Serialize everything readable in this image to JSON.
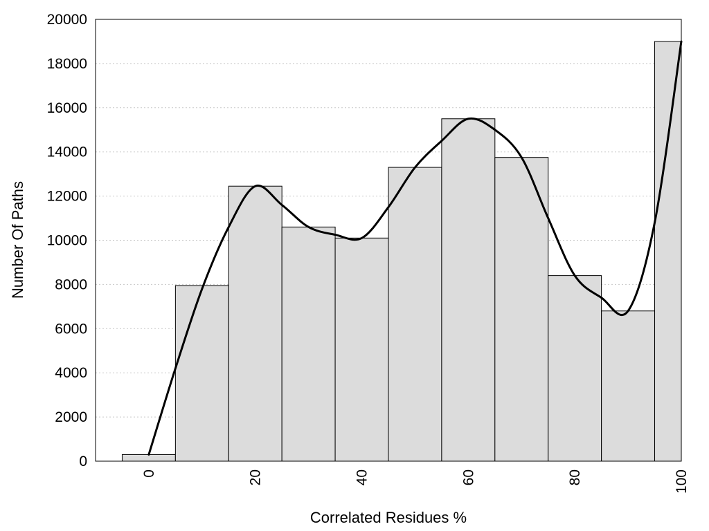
{
  "chart_data": {
    "type": "bar",
    "title": "",
    "xlabel": "Correlated Residues %",
    "ylabel": "Number Of Paths",
    "x": [
      0,
      10,
      20,
      30,
      40,
      50,
      60,
      70,
      80,
      90,
      100
    ],
    "values": [
      300,
      7950,
      12450,
      10600,
      10100,
      13300,
      15500,
      13750,
      8400,
      6800,
      19000
    ],
    "bin_width": 10,
    "xlim": [
      -10,
      100
    ],
    "ylim": [
      0,
      20000
    ],
    "xticks": [
      "0",
      "20",
      "40",
      "60",
      "80",
      "100"
    ],
    "xtick_values": [
      0,
      20,
      40,
      60,
      80,
      100
    ],
    "yticks": [
      "0",
      "2000",
      "4000",
      "6000",
      "8000",
      "10000",
      "12000",
      "14000",
      "16000",
      "18000",
      "20000"
    ],
    "ytick_values": [
      0,
      2000,
      4000,
      6000,
      8000,
      10000,
      12000,
      14000,
      16000,
      18000,
      20000
    ],
    "grid": "horizontal dotted",
    "legend": "none",
    "curve": {
      "type": "smoothed density line",
      "x": [
        0,
        5,
        10,
        15,
        20,
        25,
        30,
        35,
        40,
        45,
        50,
        55,
        60,
        65,
        70,
        75,
        80,
        85,
        90,
        95,
        100
      ],
      "y": [
        300,
        4200,
        7800,
        10600,
        12450,
        11600,
        10600,
        10250,
        10100,
        11500,
        13300,
        14500,
        15500,
        15000,
        13750,
        11000,
        8400,
        7400,
        6800,
        10800,
        19000
      ]
    },
    "colors": {
      "bar_fill": "#dcdcdc",
      "bar_edge": "#000000",
      "curve": "#000000",
      "grid": "#c8c8c8"
    }
  }
}
